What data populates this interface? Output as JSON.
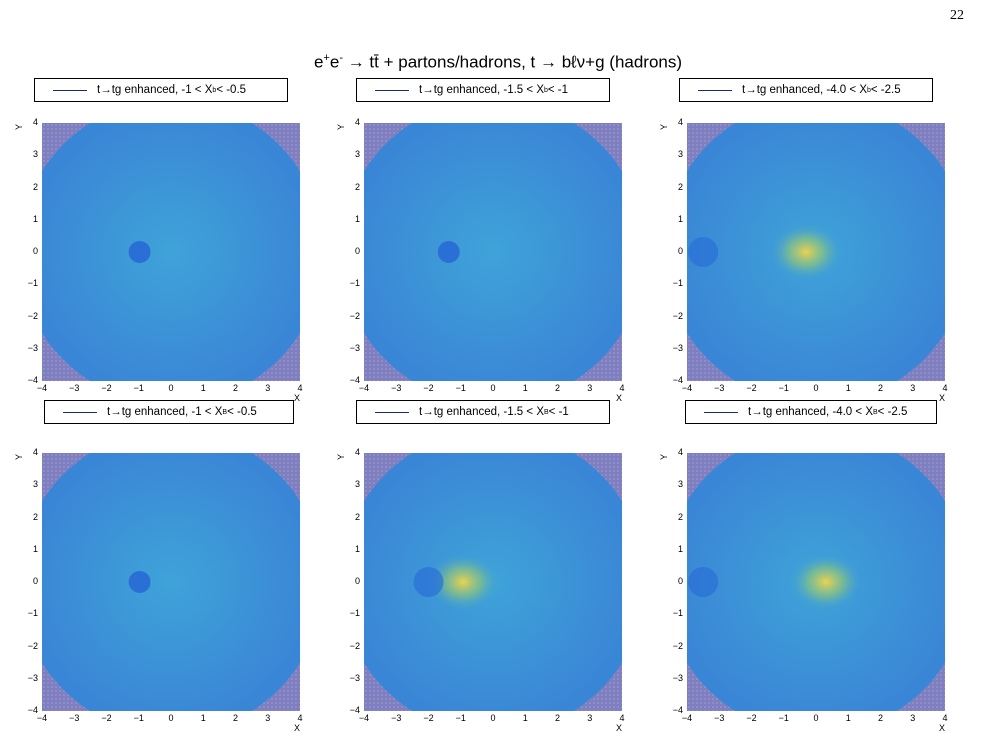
{
  "page_number": "22",
  "figure_title_main": "e",
  "figure_title_sup1": "+",
  "figure_title_mid": "e",
  "figure_title_sup2": "-",
  "figure_title_rest": " → tt̄ + partons/hadrons, t → bℓν+g (hadrons)",
  "colors": {
    "hist_low": "#2a6fd6",
    "hist_mid": "#3fa3d8",
    "hist_high": "#f7d548",
    "hatch": "#7f7fc0",
    "legend_line": "#1a2a7a"
  },
  "chart_data": [
    {
      "type": "heatmap",
      "legend": {
        "prefix": "t→tg enhanced, -1 < X",
        "sub": "b",
        "suffix": " < -0.5"
      },
      "xlabel": "X",
      "ylabel": "Y",
      "xlim": [
        -4,
        4
      ],
      "ylim": [
        -4,
        4
      ],
      "x_ticks": [
        "−4",
        "−3",
        "−2",
        "−1",
        "0",
        "1",
        "2",
        "3",
        "4"
      ],
      "y_ticks": [
        "4",
        "3",
        "2",
        "1",
        "0",
        "−1",
        "−2",
        "−3",
        "−4"
      ],
      "hotspot": {
        "x": -0.6,
        "y": 0,
        "shape": "ring"
      }
    },
    {
      "type": "heatmap",
      "legend": {
        "prefix": "t→tg enhanced, -1.5 < X",
        "sub": "b",
        "suffix": " < -1"
      },
      "xlabel": "X",
      "ylabel": "Y",
      "xlim": [
        -4,
        4
      ],
      "ylim": [
        -4,
        4
      ],
      "x_ticks": [
        "−4",
        "−3",
        "−2",
        "−1",
        "0",
        "1",
        "2",
        "3",
        "4"
      ],
      "y_ticks": [
        "4",
        "3",
        "2",
        "1",
        "0",
        "−1",
        "−2",
        "−3",
        "−4"
      ],
      "hotspot": {
        "x": -1.0,
        "y": 0,
        "shape": "ring"
      }
    },
    {
      "type": "heatmap",
      "legend": {
        "prefix": "t→tg enhanced, -4.0 < X",
        "sub": "b",
        "suffix": " < -2.5"
      },
      "xlabel": "X",
      "ylabel": "Y",
      "xlim": [
        -4,
        4
      ],
      "ylim": [
        -4,
        4
      ],
      "x_ticks": [
        "−4",
        "−3",
        "−2",
        "−1",
        "0",
        "1",
        "2",
        "3",
        "4"
      ],
      "y_ticks": [
        "4",
        "3",
        "2",
        "1",
        "0",
        "−1",
        "−2",
        "−3",
        "−4"
      ],
      "hotspot": {
        "x": -0.2,
        "y": 0,
        "shape": "blob"
      }
    },
    {
      "type": "heatmap",
      "legend": {
        "prefix": "t→tg enhanced, -1 < X",
        "sub": "B",
        "suffix": " < -0.5"
      },
      "xlabel": "X",
      "ylabel": "Y",
      "xlim": [
        -4,
        4
      ],
      "ylim": [
        -4,
        4
      ],
      "x_ticks": [
        "−4",
        "−3",
        "−2",
        "−1",
        "0",
        "1",
        "2",
        "3",
        "4"
      ],
      "y_ticks": [
        "4",
        "3",
        "2",
        "1",
        "0",
        "−1",
        "−2",
        "−3",
        "−4"
      ],
      "hotspot": {
        "x": -0.6,
        "y": 0,
        "shape": "ring"
      }
    },
    {
      "type": "heatmap",
      "legend": {
        "prefix": "t→tg enhanced, -1.5 < X",
        "sub": "B",
        "suffix": " < -1"
      },
      "xlabel": "X",
      "ylabel": "Y",
      "xlim": [
        -4,
        4
      ],
      "ylim": [
        -4,
        4
      ],
      "x_ticks": [
        "−4",
        "−3",
        "−2",
        "−1",
        "0",
        "1",
        "2",
        "3",
        "4"
      ],
      "y_ticks": [
        "4",
        "3",
        "2",
        "1",
        "0",
        "−1",
        "−2",
        "−3",
        "−4"
      ],
      "hotspot": {
        "x": -0.6,
        "y": 0,
        "shape": "blob"
      }
    },
    {
      "type": "heatmap",
      "legend": {
        "prefix": "t→tg enhanced, -4.0 < X",
        "sub": "B",
        "suffix": " < -2.5"
      },
      "xlabel": "X",
      "ylabel": "Y",
      "xlim": [
        -4,
        4
      ],
      "ylim": [
        -4,
        4
      ],
      "x_ticks": [
        "−4",
        "−3",
        "−2",
        "−1",
        "0",
        "1",
        "2",
        "3",
        "4"
      ],
      "y_ticks": [
        "4",
        "3",
        "2",
        "1",
        "0",
        "−1",
        "−2",
        "−3",
        "−4"
      ],
      "hotspot": {
        "x": 0.2,
        "y": 0,
        "shape": "blob"
      }
    }
  ]
}
